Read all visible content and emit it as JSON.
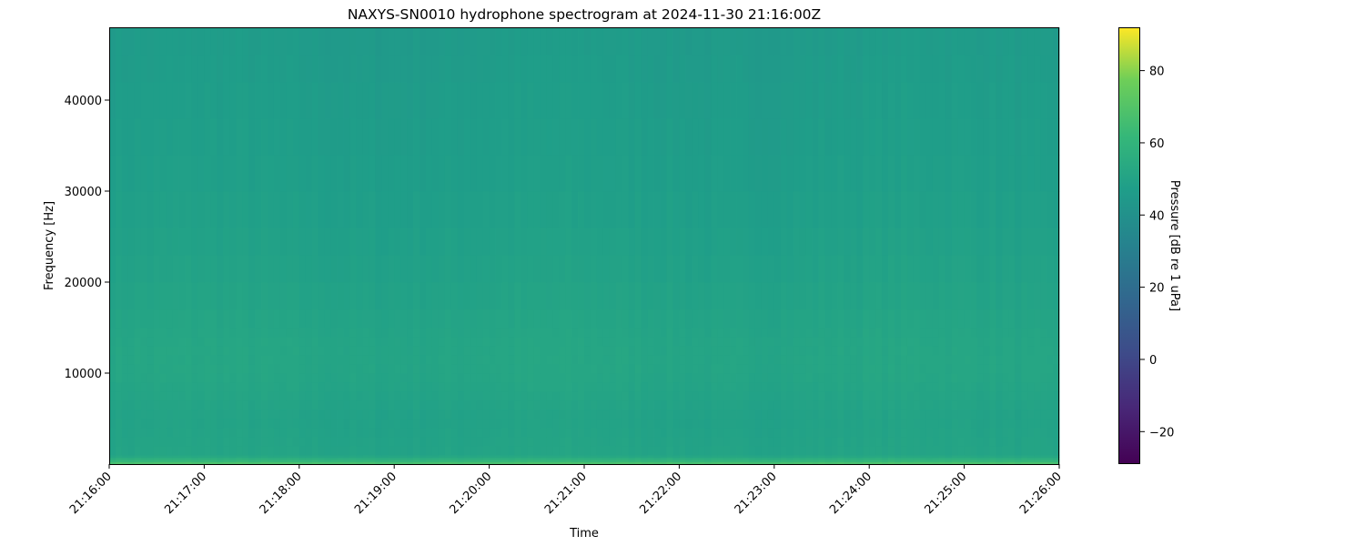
{
  "chart_data": {
    "type": "heatmap",
    "title": "NAXYS-SN0010 hydrophone spectrogram at 2024-11-30 21:16:00Z",
    "xlabel": "Time",
    "ylabel": "Frequency [Hz]",
    "x_ticks": [
      "21:16:00",
      "21:17:00",
      "21:18:00",
      "21:19:00",
      "21:20:00",
      "21:21:00",
      "21:22:00",
      "21:23:00",
      "21:24:00",
      "21:25:00",
      "21:26:00"
    ],
    "xlim": [
      "21:16:00",
      "21:26:00"
    ],
    "y_ticks": [
      10000,
      20000,
      30000,
      40000
    ],
    "ylim": [
      0,
      48000
    ],
    "colormap": "viridis",
    "colorbar": {
      "label": "Pressure [dB re 1 uPa]",
      "ticks": [
        -20,
        0,
        20,
        40,
        60,
        80
      ],
      "range": [
        -29,
        92
      ]
    },
    "frequency_profile": {
      "frequency_hz": [
        0,
        500,
        1000,
        5000,
        10000,
        13000,
        20000,
        30000,
        40000,
        48000
      ],
      "level_db": [
        70,
        58,
        50,
        49,
        51,
        51,
        49,
        47,
        46,
        45
      ]
    },
    "grid": false
  }
}
